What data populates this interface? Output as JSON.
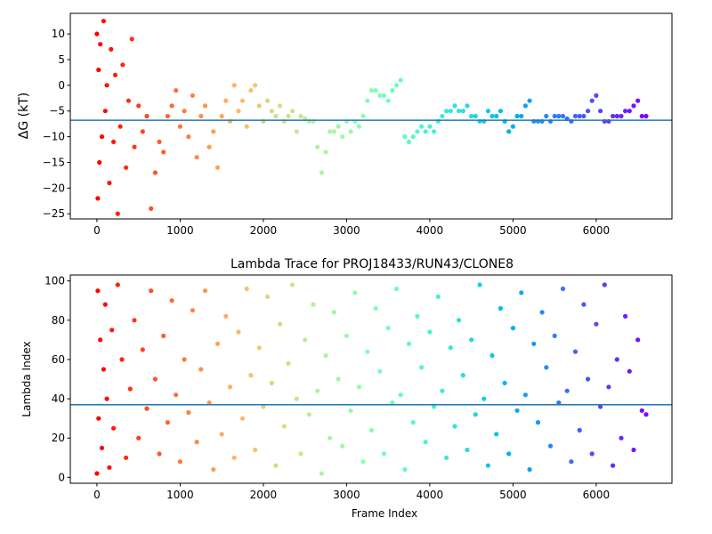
{
  "chart_data": [
    {
      "type": "scatter",
      "title": "",
      "xlabel": "",
      "ylabel": "ΔG (kT)",
      "xlim": [
        -320,
        6910
      ],
      "ylim": [
        -26,
        14
      ],
      "xticks": [
        0,
        1000,
        2000,
        3000,
        4000,
        5000,
        6000
      ],
      "yticks": [
        10,
        5,
        0,
        -5,
        -10,
        -15,
        -20,
        -25
      ],
      "hline": -6.8,
      "hline_color": "#1f77b4",
      "colormap": "rainbow (red at frame 0 → purple at last frame)",
      "grid": false,
      "n_frames": 6600,
      "points": [
        [
          0,
          10
        ],
        [
          10,
          -22
        ],
        [
          20,
          3
        ],
        [
          30,
          -15
        ],
        [
          40,
          8
        ],
        [
          60,
          -10
        ],
        [
          80,
          12.5
        ],
        [
          100,
          -5
        ],
        [
          120,
          0
        ],
        [
          150,
          -19
        ],
        [
          170,
          7
        ],
        [
          200,
          -11
        ],
        [
          220,
          2
        ],
        [
          250,
          -25
        ],
        [
          280,
          -8
        ],
        [
          310,
          4
        ],
        [
          350,
          -16
        ],
        [
          380,
          -3
        ],
        [
          420,
          9
        ],
        [
          450,
          -12
        ],
        [
          500,
          -4
        ],
        [
          550,
          -9
        ],
        [
          600,
          -6
        ],
        [
          650,
          -24
        ],
        [
          700,
          -17
        ],
        [
          750,
          -11
        ],
        [
          800,
          -13
        ],
        [
          850,
          -6
        ],
        [
          900,
          -4
        ],
        [
          950,
          -1
        ],
        [
          1000,
          -8
        ],
        [
          1050,
          -5
        ],
        [
          1100,
          -10
        ],
        [
          1150,
          -2
        ],
        [
          1200,
          -14
        ],
        [
          1250,
          -6
        ],
        [
          1300,
          -4
        ],
        [
          1350,
          -12
        ],
        [
          1400,
          -9
        ],
        [
          1450,
          -16
        ],
        [
          1500,
          -6
        ],
        [
          1550,
          -3
        ],
        [
          1600,
          -7
        ],
        [
          1650,
          0
        ],
        [
          1700,
          -5
        ],
        [
          1750,
          -3
        ],
        [
          1800,
          -8
        ],
        [
          1850,
          -1
        ],
        [
          1900,
          0
        ],
        [
          1950,
          -4
        ],
        [
          2000,
          -7
        ],
        [
          2050,
          -3
        ],
        [
          2100,
          -5
        ],
        [
          2150,
          -6
        ],
        [
          2200,
          -4
        ],
        [
          2250,
          -7
        ],
        [
          2300,
          -6
        ],
        [
          2350,
          -5
        ],
        [
          2400,
          -9
        ],
        [
          2450,
          -6
        ],
        [
          2500,
          -6.5
        ],
        [
          2550,
          -7
        ],
        [
          2600,
          -7
        ],
        [
          2650,
          -12
        ],
        [
          2700,
          -17
        ],
        [
          2750,
          -13
        ],
        [
          2800,
          -9
        ],
        [
          2850,
          -9
        ],
        [
          2900,
          -8
        ],
        [
          2950,
          -10
        ],
        [
          3000,
          -7
        ],
        [
          3050,
          -9
        ],
        [
          3100,
          -7
        ],
        [
          3150,
          -8
        ],
        [
          3200,
          -6
        ],
        [
          3250,
          -3
        ],
        [
          3300,
          -1
        ],
        [
          3350,
          -1
        ],
        [
          3400,
          -2
        ],
        [
          3450,
          -2
        ],
        [
          3500,
          -3
        ],
        [
          3550,
          -1
        ],
        [
          3600,
          0
        ],
        [
          3650,
          1
        ],
        [
          3700,
          -10
        ],
        [
          3750,
          -11
        ],
        [
          3800,
          -10
        ],
        [
          3850,
          -9
        ],
        [
          3900,
          -8
        ],
        [
          3950,
          -9
        ],
        [
          4000,
          -8
        ],
        [
          4050,
          -9
        ],
        [
          4100,
          -7
        ],
        [
          4150,
          -6
        ],
        [
          4200,
          -5
        ],
        [
          4250,
          -5
        ],
        [
          4300,
          -4
        ],
        [
          4350,
          -5
        ],
        [
          4400,
          -5
        ],
        [
          4450,
          -4
        ],
        [
          4500,
          -6
        ],
        [
          4550,
          -6
        ],
        [
          4600,
          -7
        ],
        [
          4650,
          -7
        ],
        [
          4700,
          -5
        ],
        [
          4750,
          -6
        ],
        [
          4800,
          -6
        ],
        [
          4850,
          -5
        ],
        [
          4900,
          -7
        ],
        [
          4950,
          -9
        ],
        [
          5000,
          -8
        ],
        [
          5050,
          -6
        ],
        [
          5100,
          -6
        ],
        [
          5150,
          -4
        ],
        [
          5200,
          -3
        ],
        [
          5250,
          -7
        ],
        [
          5300,
          -7
        ],
        [
          5350,
          -7
        ],
        [
          5400,
          -6
        ],
        [
          5450,
          -7
        ],
        [
          5500,
          -6
        ],
        [
          5550,
          -6
        ],
        [
          5600,
          -6
        ],
        [
          5650,
          -6.5
        ],
        [
          5700,
          -7
        ],
        [
          5750,
          -6
        ],
        [
          5800,
          -6
        ],
        [
          5850,
          -6
        ],
        [
          5900,
          -5
        ],
        [
          5950,
          -3
        ],
        [
          6000,
          -2
        ],
        [
          6050,
          -5
        ],
        [
          6100,
          -7
        ],
        [
          6150,
          -7
        ],
        [
          6200,
          -6
        ],
        [
          6250,
          -6
        ],
        [
          6300,
          -6
        ],
        [
          6350,
          -5
        ],
        [
          6400,
          -5
        ],
        [
          6450,
          -4
        ],
        [
          6500,
          -3
        ],
        [
          6550,
          -6
        ],
        [
          6600,
          -6
        ]
      ]
    },
    {
      "type": "scatter",
      "title": "Lambda Trace for PROJ18433/RUN43/CLONE8",
      "xlabel": "Frame Index",
      "ylabel": "Lambda Index",
      "xlim": [
        -320,
        6910
      ],
      "ylim": [
        -3,
        103
      ],
      "xticks": [
        0,
        1000,
        2000,
        3000,
        4000,
        5000,
        6000
      ],
      "yticks": [
        0,
        20,
        40,
        60,
        80,
        100
      ],
      "hline": 37,
      "hline_color": "#1f77b4",
      "colormap": "rainbow (red at frame 0 → purple at last frame)",
      "grid": false,
      "n_frames": 6600,
      "points": [
        [
          0,
          2
        ],
        [
          10,
          95
        ],
        [
          20,
          30
        ],
        [
          40,
          70
        ],
        [
          60,
          15
        ],
        [
          80,
          55
        ],
        [
          100,
          88
        ],
        [
          120,
          40
        ],
        [
          150,
          5
        ],
        [
          180,
          75
        ],
        [
          200,
          25
        ],
        [
          250,
          98
        ],
        [
          300,
          60
        ],
        [
          350,
          10
        ],
        [
          400,
          45
        ],
        [
          450,
          80
        ],
        [
          500,
          20
        ],
        [
          550,
          65
        ],
        [
          600,
          35
        ],
        [
          650,
          95
        ],
        [
          700,
          50
        ],
        [
          750,
          12
        ],
        [
          800,
          72
        ],
        [
          850,
          28
        ],
        [
          900,
          90
        ],
        [
          950,
          42
        ],
        [
          1000,
          8
        ],
        [
          1050,
          60
        ],
        [
          1100,
          33
        ],
        [
          1150,
          85
        ],
        [
          1200,
          18
        ],
        [
          1250,
          55
        ],
        [
          1300,
          95
        ],
        [
          1350,
          38
        ],
        [
          1400,
          4
        ],
        [
          1450,
          68
        ],
        [
          1500,
          22
        ],
        [
          1550,
          82
        ],
        [
          1600,
          46
        ],
        [
          1650,
          10
        ],
        [
          1700,
          74
        ],
        [
          1750,
          30
        ],
        [
          1800,
          96
        ],
        [
          1850,
          52
        ],
        [
          1900,
          14
        ],
        [
          1950,
          66
        ],
        [
          2000,
          36
        ],
        [
          2050,
          92
        ],
        [
          2100,
          48
        ],
        [
          2150,
          6
        ],
        [
          2200,
          78
        ],
        [
          2250,
          26
        ],
        [
          2300,
          58
        ],
        [
          2350,
          98
        ],
        [
          2400,
          40
        ],
        [
          2450,
          12
        ],
        [
          2500,
          70
        ],
        [
          2550,
          32
        ],
        [
          2600,
          88
        ],
        [
          2650,
          44
        ],
        [
          2700,
          2
        ],
        [
          2750,
          62
        ],
        [
          2800,
          20
        ],
        [
          2850,
          84
        ],
        [
          2900,
          50
        ],
        [
          2950,
          16
        ],
        [
          3000,
          72
        ],
        [
          3050,
          34
        ],
        [
          3100,
          94
        ],
        [
          3150,
          46
        ],
        [
          3200,
          8
        ],
        [
          3250,
          64
        ],
        [
          3300,
          24
        ],
        [
          3350,
          86
        ],
        [
          3400,
          54
        ],
        [
          3450,
          12
        ],
        [
          3500,
          76
        ],
        [
          3550,
          38
        ],
        [
          3600,
          96
        ],
        [
          3650,
          42
        ],
        [
          3700,
          4
        ],
        [
          3750,
          68
        ],
        [
          3800,
          28
        ],
        [
          3850,
          82
        ],
        [
          3900,
          56
        ],
        [
          3950,
          18
        ],
        [
          4000,
          74
        ],
        [
          4050,
          36
        ],
        [
          4100,
          92
        ],
        [
          4150,
          44
        ],
        [
          4200,
          10
        ],
        [
          4250,
          66
        ],
        [
          4300,
          26
        ],
        [
          4350,
          80
        ],
        [
          4400,
          52
        ],
        [
          4450,
          14
        ],
        [
          4500,
          70
        ],
        [
          4550,
          32
        ],
        [
          4600,
          98
        ],
        [
          4650,
          40
        ],
        [
          4700,
          6
        ],
        [
          4750,
          62
        ],
        [
          4800,
          22
        ],
        [
          4850,
          86
        ],
        [
          4900,
          48
        ],
        [
          4950,
          12
        ],
        [
          5000,
          76
        ],
        [
          5050,
          34
        ],
        [
          5100,
          94
        ],
        [
          5150,
          42
        ],
        [
          5200,
          4
        ],
        [
          5250,
          68
        ],
        [
          5300,
          28
        ],
        [
          5350,
          84
        ],
        [
          5400,
          56
        ],
        [
          5450,
          16
        ],
        [
          5500,
          72
        ],
        [
          5550,
          38
        ],
        [
          5600,
          96
        ],
        [
          5650,
          44
        ],
        [
          5700,
          8
        ],
        [
          5750,
          64
        ],
        [
          5800,
          24
        ],
        [
          5850,
          88
        ],
        [
          5900,
          50
        ],
        [
          5950,
          12
        ],
        [
          6000,
          78
        ],
        [
          6050,
          36
        ],
        [
          6100,
          98
        ],
        [
          6150,
          46
        ],
        [
          6200,
          6
        ],
        [
          6250,
          60
        ],
        [
          6300,
          20
        ],
        [
          6350,
          82
        ],
        [
          6400,
          54
        ],
        [
          6450,
          14
        ],
        [
          6500,
          70
        ],
        [
          6550,
          34
        ],
        [
          6600,
          32
        ]
      ]
    }
  ]
}
